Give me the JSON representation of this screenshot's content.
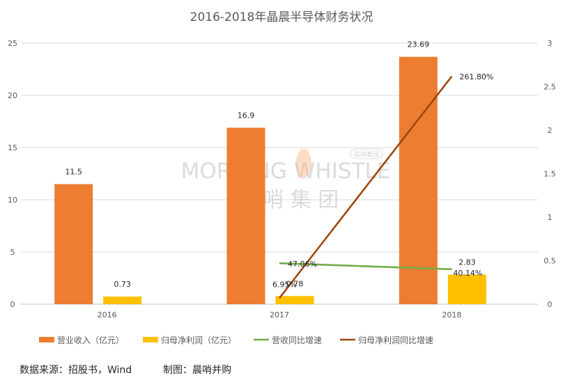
{
  "chart_data": {
    "type": "bar",
    "title": "2016-2018年晶晨半导体财务状况",
    "categories": [
      "2016",
      "2017",
      "2018"
    ],
    "y_left": {
      "ylim": [
        0,
        25
      ],
      "ticks": [
        "0",
        "5",
        "10",
        "15",
        "20",
        "25"
      ]
    },
    "y_right": {
      "ylim": [
        0,
        3
      ],
      "ticks": [
        "0",
        "0.5",
        "1",
        "1.5",
        "2",
        "2.5",
        "3"
      ]
    },
    "series": [
      {
        "name": "营业收入（亿元）",
        "kind": "bar",
        "axis": "left",
        "color": "#ED7D31",
        "values": [
          11.5,
          16.9,
          23.69
        ],
        "labels": [
          "11.5",
          "16.9",
          "23.69"
        ]
      },
      {
        "name": "归母净利润（亿元）",
        "kind": "bar",
        "axis": "left",
        "color": "#FFC000",
        "values": [
          0.73,
          0.78,
          2.83
        ],
        "labels": [
          "0.73",
          "0.78",
          "2.83"
        ]
      },
      {
        "name": "营收同比增速",
        "kind": "line",
        "axis": "right",
        "color": "#70AD47",
        "values": [
          null,
          0.4706,
          0.4014
        ],
        "labels": [
          "",
          "47.06%",
          "40.14%"
        ]
      },
      {
        "name": "归母净利润同比增速",
        "kind": "line",
        "axis": "right",
        "color": "#9E480E",
        "values": [
          null,
          0.0695,
          2.618
        ],
        "labels": [
          "",
          "6.95%",
          "261.80%"
        ]
      }
    ],
    "legend_position": "bottom",
    "grid": true
  },
  "watermark": {
    "en": "MORNING WHISTLE",
    "cn": "晨 哨 集 团",
    "badge": "晨哨集团"
  },
  "footer": {
    "source": "数据来源：招股书，Wind",
    "credit": "制图：晨哨并购"
  }
}
